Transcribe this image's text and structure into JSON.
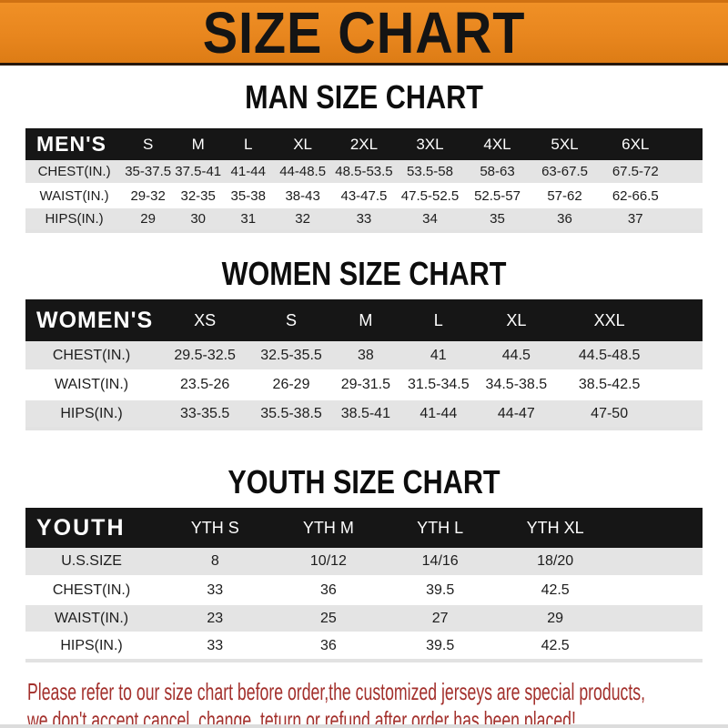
{
  "banner": {
    "title": "SIZE CHART"
  },
  "sections": [
    {
      "id": "men",
      "heading": "MAN SIZE CHART",
      "table": {
        "label": "MEN'S",
        "columns": [
          "S",
          "M",
          "L",
          "XL",
          "2XL",
          "3XL",
          "4XL",
          "5XL",
          "6XL"
        ],
        "rows": [
          {
            "label": "CHEST(IN.)",
            "values": [
              "35-37.5",
              "37.5-41",
              "41-44",
              "44-48.5",
              "48.5-53.5",
              "53.5-58",
              "58-63",
              "63-67.5",
              "67.5-72"
            ]
          },
          {
            "label": "WAIST(IN.)",
            "values": [
              "29-32",
              "32-35",
              "35-38",
              "38-43",
              "43-47.5",
              "47.5-52.5",
              "52.5-57",
              "57-62",
              "62-66.5"
            ]
          },
          {
            "label": "HIPS(IN.)",
            "values": [
              "29",
              "30",
              "31",
              "32",
              "33",
              "34",
              "35",
              "36",
              "37"
            ]
          }
        ]
      }
    },
    {
      "id": "women",
      "heading": "WOMEN SIZE CHART",
      "table": {
        "label": "WOMEN'S",
        "columns": [
          "XS",
          "S",
          "M",
          "L",
          "XL",
          "XXL"
        ],
        "rows": [
          {
            "label": "CHEST(IN.)",
            "values": [
              "29.5-32.5",
              "32.5-35.5",
              "38",
              "41",
              "44.5",
              "44.5-48.5"
            ]
          },
          {
            "label": "WAIST(IN.)",
            "values": [
              "23.5-26",
              "26-29",
              "29-31.5",
              "31.5-34.5",
              "34.5-38.5",
              "38.5-42.5"
            ]
          },
          {
            "label": "HIPS(IN.)",
            "values": [
              "33-35.5",
              "35.5-38.5",
              "38.5-41",
              "41-44",
              "44-47",
              "47-50"
            ]
          }
        ]
      }
    },
    {
      "id": "youth",
      "heading": "YOUTH SIZE CHART",
      "table": {
        "label": "YOUTH",
        "columns": [
          "YTH S",
          "YTH M",
          "YTH L",
          "YTH XL"
        ],
        "rows": [
          {
            "label": "U.S.SIZE",
            "values": [
              "8",
              "10/12",
              "14/16",
              "18/20"
            ]
          },
          {
            "label": "CHEST(IN.)",
            "values": [
              "33",
              "36",
              "39.5",
              "42.5"
            ]
          },
          {
            "label": "WAIST(IN.)",
            "values": [
              "23",
              "25",
              "27",
              "29"
            ]
          },
          {
            "label": "HIPS(IN.)",
            "values": [
              "33",
              "36",
              "39.5",
              "42.5"
            ]
          }
        ]
      }
    }
  ],
  "footer": {
    "line1": "Please refer to our size chart before order,the customized jerseys are special products,",
    "line2": "we don't accept cancel, change, teturn or refund after order has been placed!"
  },
  "colors": {
    "banner_orange": "#E8861E",
    "header_bar_black": "#161616",
    "row_stripe_gray": "#E4E4E4",
    "footer_red": "#A3302C",
    "banner_text_black": "#141414"
  }
}
